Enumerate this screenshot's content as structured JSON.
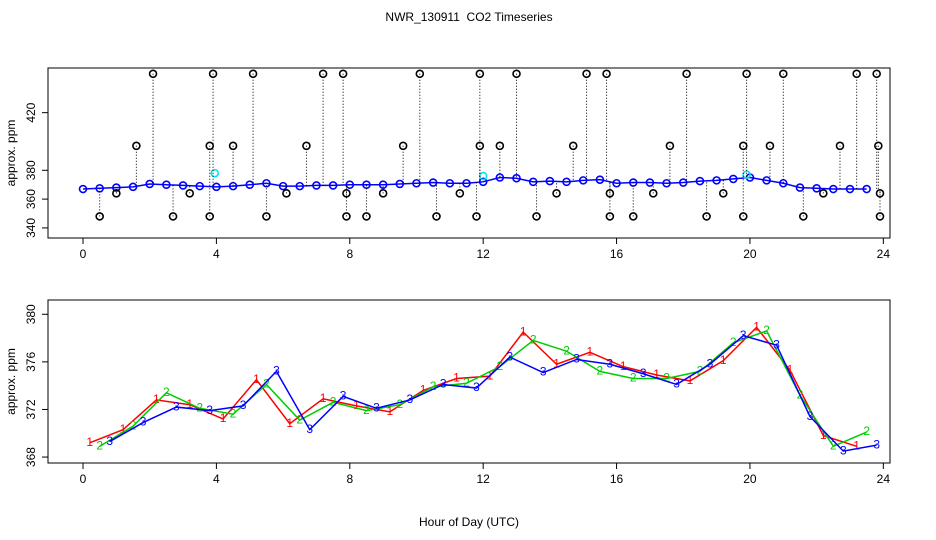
{
  "chart_data": [
    {
      "type": "scatter",
      "title": "NWR_130911  CO2 Timeseries",
      "y_label": "approx. ppm",
      "xlim": [
        -1.05,
        24.2
      ],
      "xticks": [
        0,
        4,
        8,
        12,
        16,
        20,
        24
      ],
      "ylim": [
        333,
        451
      ],
      "yticks": [
        340,
        360,
        380,
        420
      ],
      "series": [
        {
          "color": "#0000ff",
          "line": true,
          "x": [
            0,
            0.5,
            1,
            1.5,
            2,
            2.5,
            3,
            3.5,
            4,
            4.5,
            5,
            5.5,
            6,
            6.5,
            7,
            7.5,
            8,
            8.5,
            9,
            9.5,
            10,
            10.5,
            11,
            11.5,
            12,
            12.5,
            13,
            13.5,
            14,
            14.5,
            15,
            15.5,
            16,
            16.5,
            17,
            17.5,
            18,
            18.5,
            19,
            19.5,
            20,
            20.5,
            21,
            21.5,
            22,
            22.5,
            23,
            23.5
          ],
          "values": [
            367,
            367.5,
            368,
            368.5,
            370.5,
            370,
            369.5,
            369,
            368.5,
            369,
            370,
            371,
            369,
            369,
            369.5,
            369.5,
            370,
            370,
            370,
            370.5,
            371,
            371.5,
            371,
            371,
            372,
            375,
            374.5,
            372,
            372.5,
            372,
            373,
            373.5,
            371,
            371.5,
            371.5,
            371,
            371.5,
            372.5,
            373,
            374,
            375,
            373,
            371,
            368,
            367.5,
            367,
            367,
            367
          ]
        },
        {
          "color": "#00e5ee",
          "line": false,
          "x": [
            3.95,
            12.0,
            19.9
          ],
          "values": [
            378,
            376,
            377
          ]
        },
        {
          "color": "#000000",
          "line": false,
          "drop_lines": true,
          "x": [
            0.5,
            1.0,
            1.6,
            2.1,
            2.7,
            3.2,
            3.8,
            3.8,
            3.9,
            4.5,
            5.1,
            5.5,
            6.1,
            6.7,
            7.2,
            7.8,
            7.9,
            7.9,
            8.5,
            9.0,
            9.6,
            10.1,
            10.6,
            11.3,
            11.8,
            11.9,
            11.9,
            12.5,
            13.0,
            13.6,
            14.2,
            14.7,
            15.1,
            15.7,
            15.8,
            15.8,
            16.5,
            17.1,
            17.6,
            18.1,
            18.7,
            19.2,
            19.8,
            19.8,
            19.9,
            20.6,
            21.0,
            21.6,
            22.2,
            22.7,
            23.2,
            23.8,
            23.85,
            23.9,
            23.9
          ],
          "values": [
            348,
            364,
            397,
            447,
            348,
            364,
            348,
            397,
            447,
            397,
            447,
            348,
            364,
            397,
            447,
            447,
            364,
            348,
            348,
            364,
            397,
            447,
            348,
            364,
            348,
            397,
            447,
            397,
            447,
            348,
            364,
            397,
            447,
            447,
            364,
            348,
            348,
            364,
            397,
            447,
            348,
            364,
            348,
            397,
            447,
            397,
            447,
            348,
            364,
            397,
            447,
            447,
            397,
            364,
            348
          ]
        }
      ]
    },
    {
      "type": "line",
      "y_label": "approx. ppm",
      "x_label": "Hour of Day (UTC)",
      "xlim": [
        -1.05,
        24.2
      ],
      "xticks": [
        0,
        4,
        8,
        12,
        16,
        20,
        24
      ],
      "ylim": [
        367.5,
        381.2
      ],
      "yticks": [
        368,
        372,
        376,
        380
      ],
      "series": [
        {
          "name": "1",
          "color": "#ff0000",
          "x": [
            0.2,
            1.2,
            2.2,
            3.2,
            4.2,
            5.2,
            6.2,
            7.2,
            8.2,
            9.2,
            10.2,
            11.2,
            12.2,
            13.2,
            14.2,
            15.2,
            16.2,
            17.2,
            18.2,
            19.2,
            20.2,
            21.2,
            22.2,
            23.2
          ],
          "values": [
            369.2,
            370.3,
            372.8,
            372.4,
            371.2,
            374.5,
            370.8,
            372.9,
            372.3,
            371.8,
            373.6,
            374.6,
            374.8,
            378.5,
            375.8,
            376.8,
            375.6,
            374.9,
            374.4,
            376.1,
            378.9,
            375.3,
            369.8,
            368.9
          ]
        },
        {
          "name": "2",
          "color": "#00cd00",
          "x": [
            0.5,
            1.5,
            2.5,
            3.5,
            4.5,
            5.5,
            6.5,
            7.5,
            8.5,
            9.5,
            10.5,
            11.5,
            12.5,
            13.5,
            14.5,
            15.5,
            16.5,
            17.5,
            18.5,
            19.5,
            20.5,
            21.5,
            22.5,
            23.5
          ],
          "values": [
            368.9,
            370.6,
            373.4,
            372.1,
            371.6,
            374.1,
            371.1,
            372.6,
            371.9,
            372.4,
            373.9,
            374.2,
            375.6,
            377.8,
            376.9,
            375.2,
            374.6,
            374.6,
            375.2,
            377.6,
            378.6,
            373.2,
            368.9,
            370.1
          ]
        },
        {
          "name": "3",
          "color": "#0000ff",
          "x": [
            0.8,
            1.8,
            2.8,
            3.8,
            4.8,
            5.8,
            6.8,
            7.8,
            8.8,
            9.8,
            10.8,
            11.8,
            12.8,
            13.8,
            14.8,
            15.8,
            16.8,
            17.8,
            18.8,
            19.8,
            20.8,
            21.8,
            22.8,
            23.8
          ],
          "values": [
            369.3,
            370.9,
            372.2,
            371.9,
            372.3,
            375.2,
            370.3,
            373.1,
            372.1,
            372.8,
            374.1,
            373.8,
            376.4,
            375.1,
            376.2,
            375.8,
            375.0,
            374.1,
            375.8,
            378.2,
            377.4,
            371.4,
            368.5,
            369.0
          ]
        }
      ]
    }
  ]
}
